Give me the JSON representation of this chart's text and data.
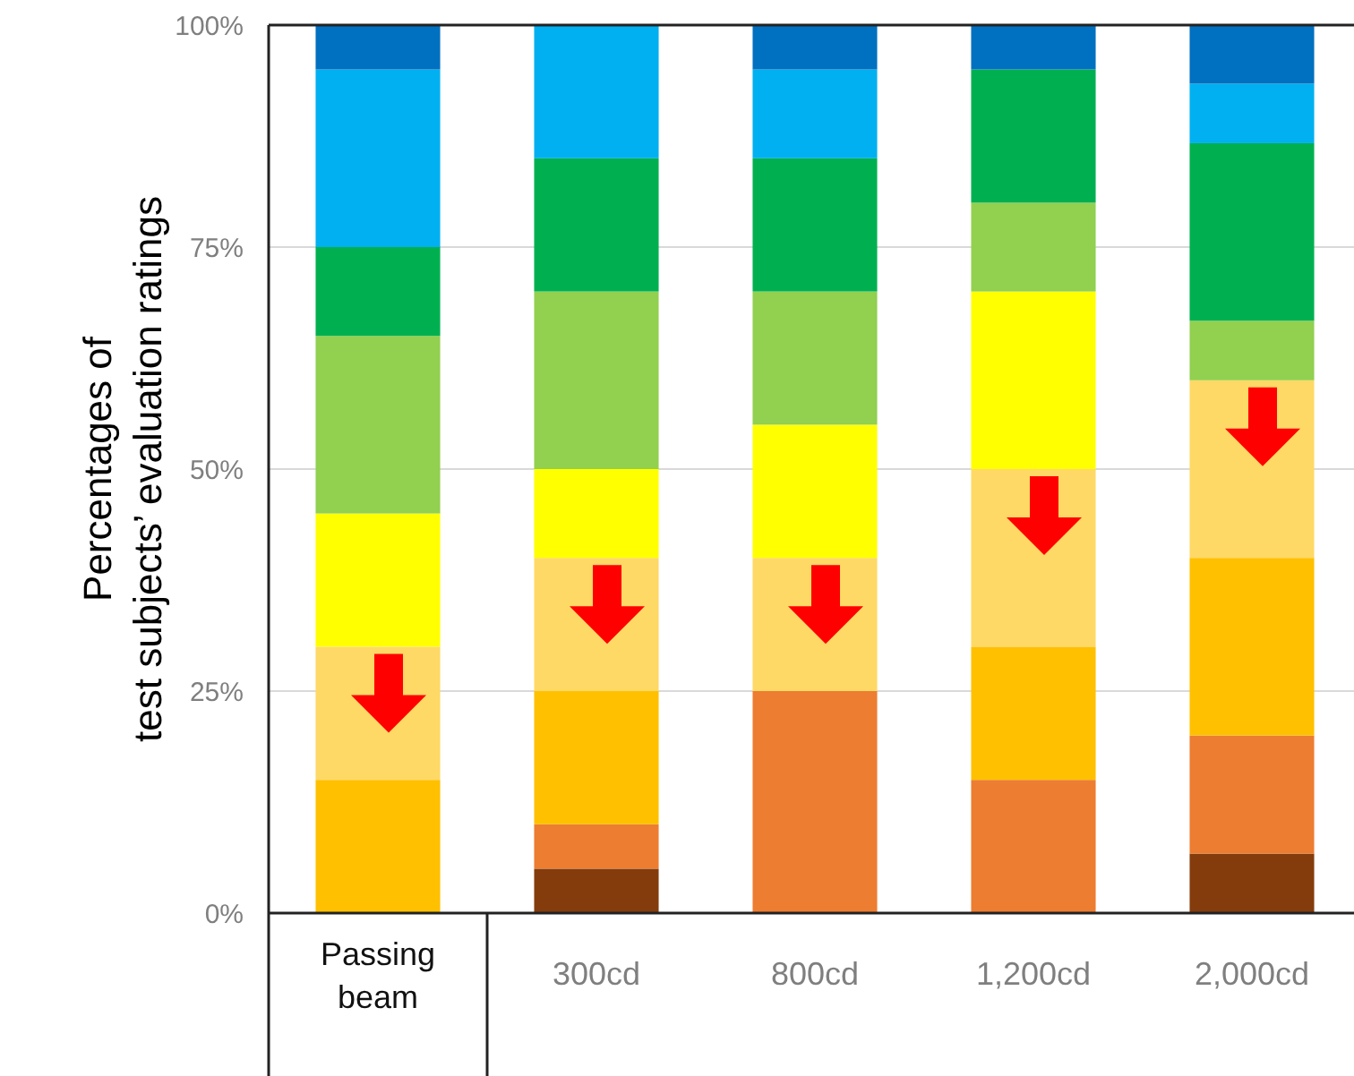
{
  "chart_data": {
    "type": "bar",
    "stacked": true,
    "ylabel": "Percentages of\ntest subjects’ evaluation ratings",
    "categories": [
      "Passing beam",
      "300cd",
      "800cd",
      "1,200cd",
      "2,000cd"
    ],
    "ylim": [
      0,
      100
    ],
    "yticks": [
      {
        "value": 0,
        "label": "0%"
      },
      {
        "value": 25,
        "label": "25%"
      },
      {
        "value": 50,
        "label": "50%"
      },
      {
        "value": 75,
        "label": "75%"
      },
      {
        "value": 100,
        "label": "100%"
      }
    ],
    "grid": "y",
    "series": [
      {
        "color": "#843c0c",
        "values": [
          0,
          5,
          0,
          0,
          6.7
        ]
      },
      {
        "color": "#ed7d31",
        "values": [
          0,
          5,
          25,
          15,
          13.3
        ]
      },
      {
        "color": "#ffc000",
        "values": [
          15,
          15,
          0,
          15,
          20
        ]
      },
      {
        "color": "#ffd966",
        "values": [
          15,
          15,
          15,
          20,
          20
        ]
      },
      {
        "color": "#ffff00",
        "values": [
          15,
          10,
          15,
          20,
          0
        ]
      },
      {
        "color": "#92d050",
        "values": [
          20,
          20,
          15,
          10,
          6.7
        ]
      },
      {
        "color": "#00b050",
        "values": [
          10,
          15,
          15,
          15,
          20
        ]
      },
      {
        "color": "#00b0f0",
        "values": [
          20,
          15,
          10,
          0,
          6.7
        ]
      },
      {
        "color": "#0070c0",
        "values": [
          5,
          0,
          5,
          5,
          6.6
        ]
      }
    ]
  }
}
